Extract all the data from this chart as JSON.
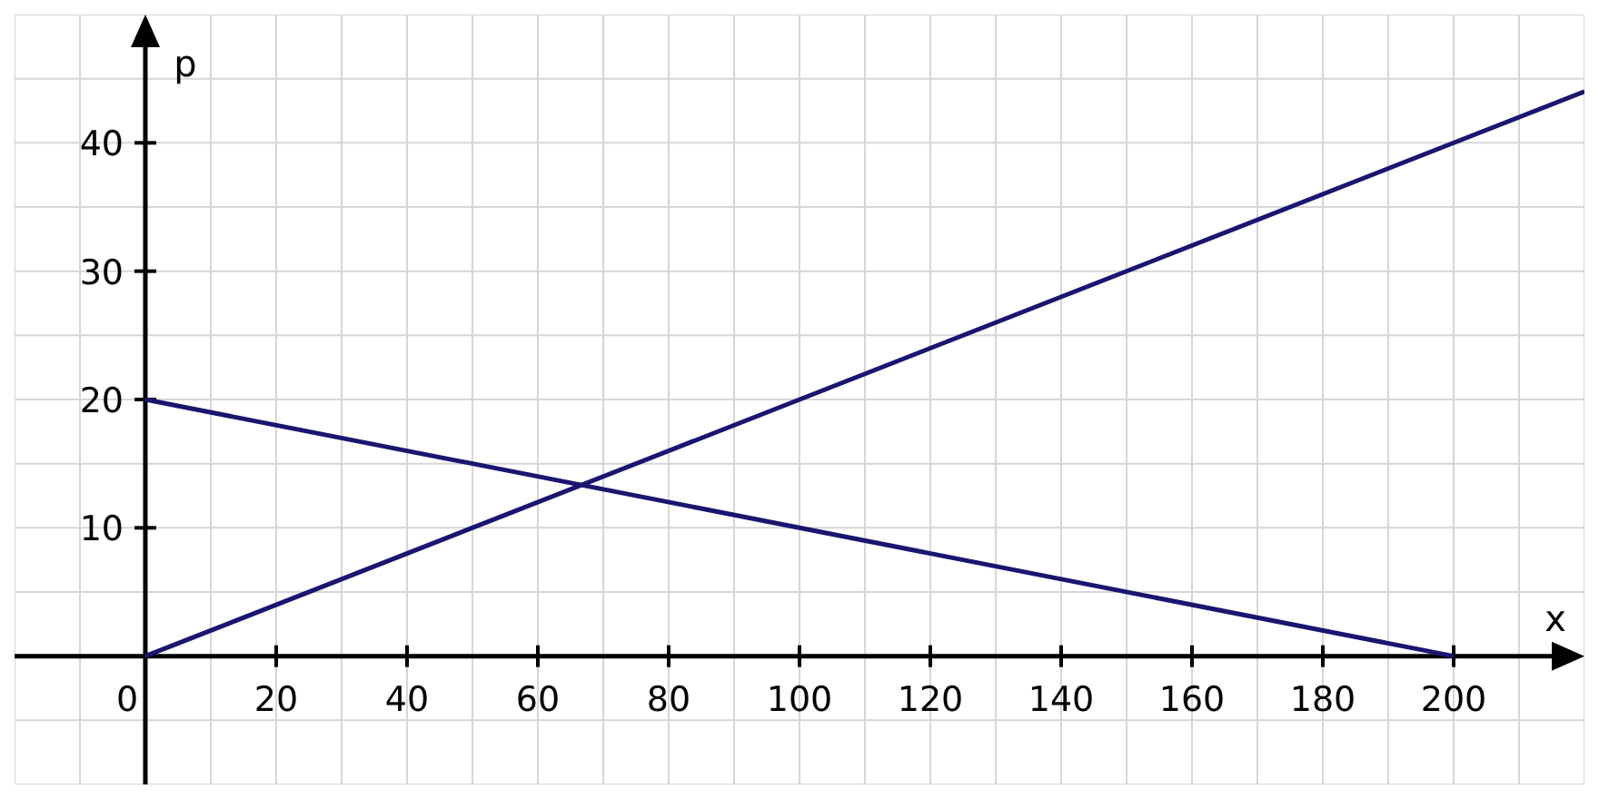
{
  "chart_data": {
    "type": "line",
    "xlabel": "x",
    "ylabel": "p",
    "series": [
      {
        "color": "#1a1670",
        "x": [
          0,
          200
        ],
        "values": [
          20,
          0
        ]
      },
      {
        "color": "#1a1670",
        "x": [
          0,
          220
        ],
        "values": [
          0,
          44
        ]
      }
    ],
    "xlim": [
      -20,
      220
    ],
    "ylim": [
      -10,
      50
    ],
    "xticks": [
      0,
      20,
      40,
      60,
      80,
      100,
      120,
      140,
      160,
      180,
      200
    ],
    "yticks": [
      10,
      20,
      30,
      40
    ],
    "grid": true,
    "marker": "none",
    "line_style": "solid"
  }
}
